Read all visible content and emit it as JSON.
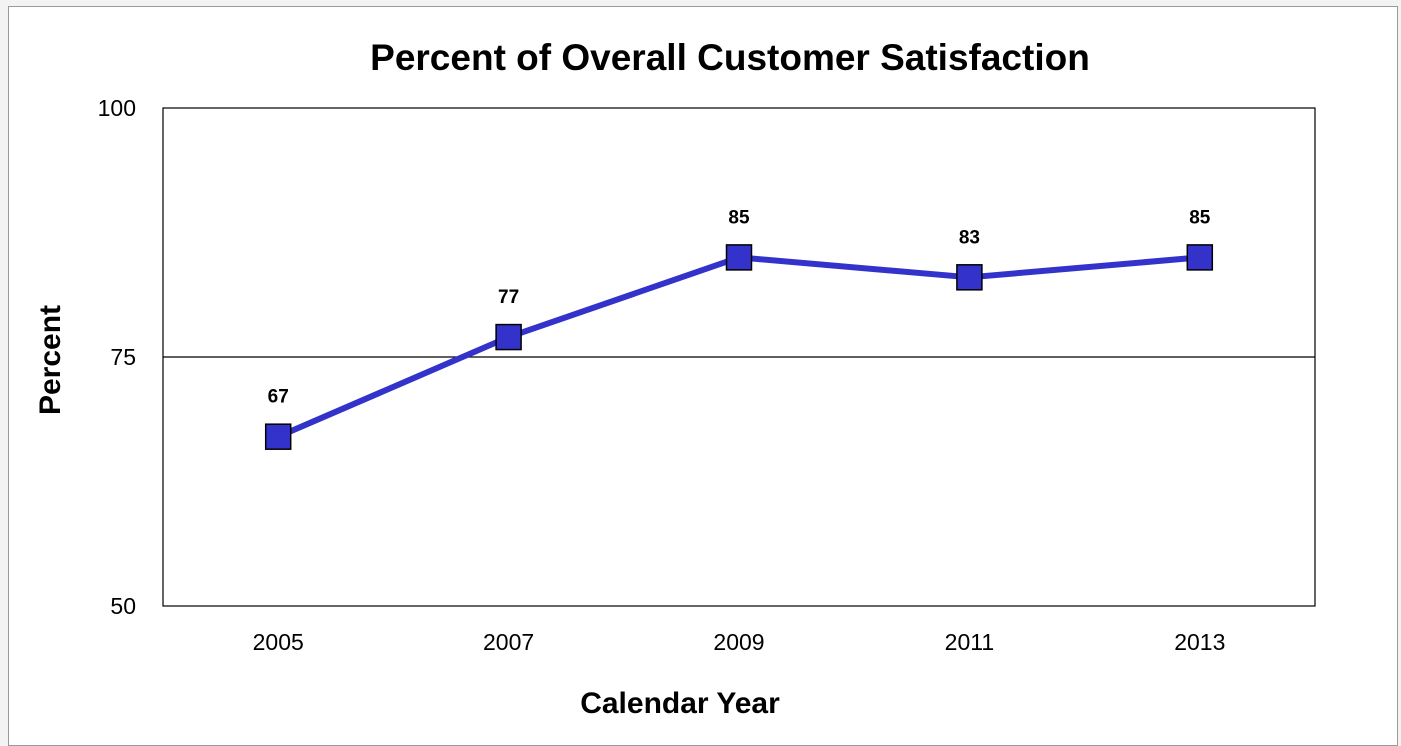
{
  "chart_data": {
    "type": "line",
    "title": "Percent of Overall Customer Satisfaction",
    "xlabel": "Calendar Year",
    "ylabel": "Percent",
    "categories": [
      "2005",
      "2007",
      "2009",
      "2011",
      "2013"
    ],
    "series": [
      {
        "values": [
          67,
          77,
          85,
          83,
          85
        ],
        "color": "#3333cc",
        "marker": "square"
      }
    ],
    "ylim": [
      50,
      100
    ],
    "yticks": [
      50,
      75,
      100
    ],
    "gridlines": [
      75
    ],
    "legend": "none"
  }
}
